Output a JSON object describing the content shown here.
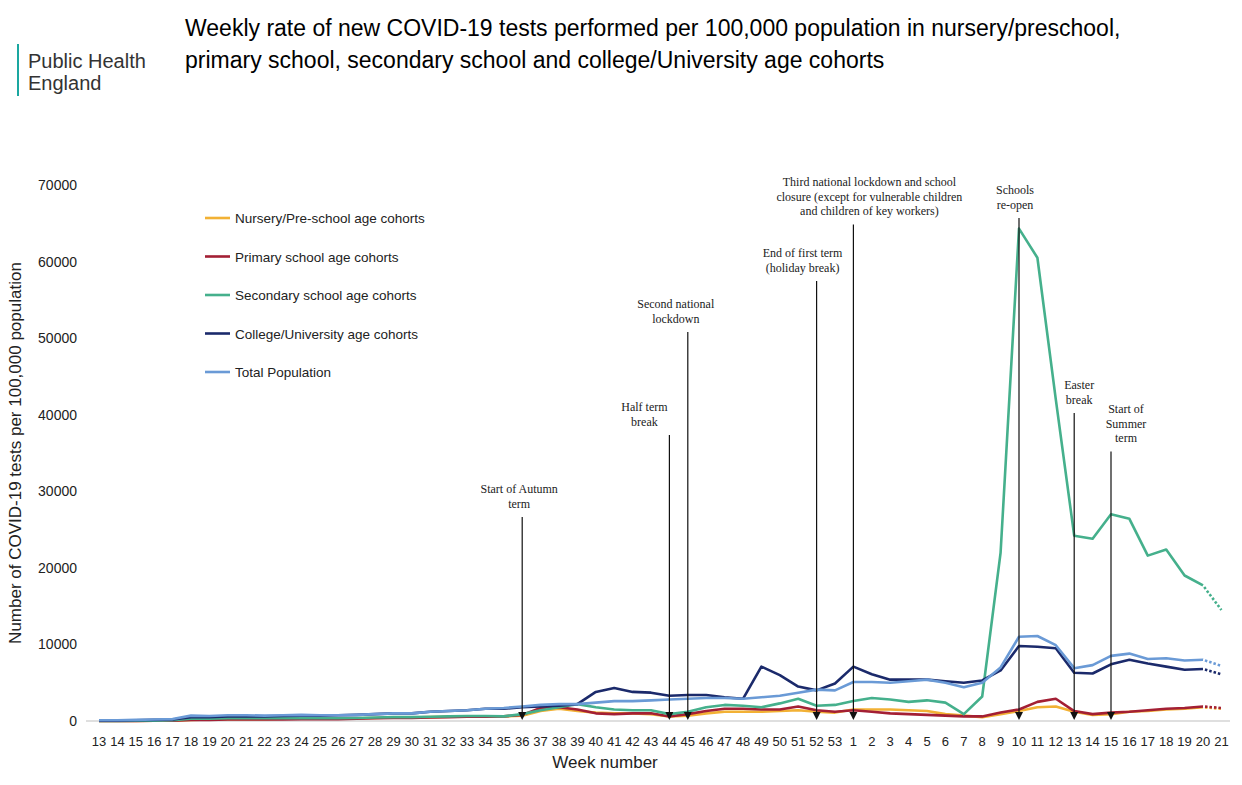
{
  "chart_data": {
    "type": "line",
    "logo": "Public Health England",
    "title": "Weekly rate of new COVID-19 tests performed per 100,000 population in nursery/preschool, primary school, secondary school and college/University age cohorts",
    "x_label": "Week number",
    "y_label": "Number of COVID-19 tests per 100,000 population",
    "categories": [
      "13",
      "14",
      "15",
      "16",
      "17",
      "18",
      "19",
      "20",
      "21",
      "22",
      "23",
      "24",
      "25",
      "26",
      "27",
      "28",
      "29",
      "30",
      "31",
      "32",
      "33",
      "34",
      "35",
      "36",
      "37",
      "38",
      "39",
      "40",
      "41",
      "42",
      "43",
      "44",
      "45",
      "46",
      "47",
      "48",
      "49",
      "50",
      "51",
      "52",
      "53",
      "1",
      "2",
      "3",
      "4",
      "5",
      "6",
      "7",
      "8",
      "9",
      "10",
      "11",
      "12",
      "13",
      "14",
      "15",
      "16",
      "17",
      "18",
      "19",
      "20",
      "21"
    ],
    "ylim": [
      0,
      70000
    ],
    "yticks": [
      0,
      10000,
      20000,
      30000,
      40000,
      50000,
      60000,
      70000
    ],
    "grid": false,
    "legend": "top-left",
    "series": [
      {
        "name": "Nursery/Pre-school age cohorts",
        "color": "#f2b134",
        "values": [
          0,
          0,
          0,
          50,
          50,
          150,
          200,
          250,
          250,
          250,
          300,
          300,
          300,
          300,
          350,
          400,
          450,
          450,
          500,
          550,
          600,
          600,
          600,
          700,
          1300,
          1600,
          1300,
          1100,
          1000,
          1000,
          900,
          600,
          700,
          1000,
          1200,
          1200,
          1200,
          1300,
          1400,
          1200,
          1100,
          1500,
          1500,
          1500,
          1400,
          1300,
          900,
          700,
          500,
          900,
          1300,
          1800,
          1900,
          1200,
          800,
          900,
          1200,
          1300,
          1500,
          1600,
          1800,
          1600
        ]
      },
      {
        "name": "Primary school age cohorts",
        "color": "#a31f34",
        "values": [
          0,
          0,
          0,
          50,
          50,
          150,
          150,
          200,
          200,
          200,
          200,
          250,
          250,
          250,
          300,
          350,
          400,
          400,
          450,
          500,
          550,
          550,
          600,
          800,
          1700,
          1800,
          1500,
          1000,
          900,
          1000,
          1000,
          600,
          900,
          1300,
          1600,
          1600,
          1500,
          1500,
          1900,
          1400,
          1200,
          1400,
          1200,
          1000,
          900,
          800,
          700,
          600,
          600,
          1100,
          1500,
          2500,
          2900,
          1300,
          900,
          1100,
          1200,
          1400,
          1600,
          1700,
          1900,
          1700
        ]
      },
      {
        "name": "Secondary school age cohorts",
        "color": "#45b08c",
        "values": [
          0,
          0,
          50,
          50,
          100,
          300,
          300,
          350,
          350,
          350,
          350,
          350,
          350,
          350,
          400,
          450,
          500,
          500,
          550,
          600,
          650,
          650,
          600,
          900,
          1400,
          1800,
          2200,
          1800,
          1500,
          1400,
          1400,
          900,
          1200,
          1800,
          2100,
          2000,
          1800,
          2300,
          2900,
          2000,
          2100,
          2600,
          3000,
          2800,
          2500,
          2700,
          2400,
          900,
          3200,
          22000,
          64300,
          60500,
          42000,
          24200,
          23800,
          27000,
          26400,
          21600,
          22400,
          19000,
          17700,
          14500
        ]
      },
      {
        "name": "College/University age cohorts",
        "color": "#1b2a6b",
        "values": [
          50,
          50,
          100,
          150,
          200,
          500,
          500,
          600,
          600,
          600,
          650,
          700,
          700,
          750,
          800,
          900,
          1000,
          1000,
          1200,
          1300,
          1400,
          1600,
          1600,
          1800,
          1900,
          2000,
          2200,
          3800,
          4300,
          3800,
          3700,
          3300,
          3400,
          3400,
          3100,
          2900,
          7100,
          6000,
          4500,
          4000,
          4900,
          7100,
          6100,
          5400,
          5400,
          5400,
          5200,
          5000,
          5300,
          6600,
          9800,
          9700,
          9500,
          6300,
          6200,
          7400,
          8000,
          7500,
          7100,
          6700,
          6800,
          6100
        ]
      },
      {
        "name": "Total Population",
        "color": "#6a9ad6",
        "values": [
          100,
          100,
          150,
          200,
          250,
          700,
          650,
          750,
          750,
          700,
          750,
          800,
          750,
          750,
          800,
          900,
          1000,
          1000,
          1200,
          1300,
          1400,
          1600,
          1700,
          1900,
          2100,
          2200,
          2200,
          2400,
          2600,
          2600,
          2700,
          2800,
          2900,
          3000,
          3000,
          2900,
          3100,
          3300,
          3700,
          4100,
          4000,
          5100,
          5100,
          5000,
          5200,
          5400,
          5000,
          4400,
          5000,
          7000,
          11000,
          11100,
          9900,
          6900,
          7300,
          8500,
          8800,
          8100,
          8200,
          7900,
          8000,
          7200
        ]
      }
    ],
    "annotations": [
      {
        "category_index": 23,
        "lines": [
          "Start of Autumn",
          "term"
        ]
      },
      {
        "category_index": 31,
        "lines": [
          "Half term",
          "break"
        ]
      },
      {
        "category_index": 32,
        "lines": [
          "Second national",
          "lockdown"
        ]
      },
      {
        "category_index": 39,
        "lines": [
          "End of first term",
          "(holiday break)"
        ]
      },
      {
        "category_index": 41,
        "lines": [
          "Third national lockdown and school",
          "closure (except for vulnerable children",
          "and children of key workers)"
        ]
      },
      {
        "category_index": 50,
        "lines": [
          "Schools",
          "re-open"
        ]
      },
      {
        "category_index": 53,
        "lines": [
          "Easter",
          "break"
        ]
      },
      {
        "category_index": 55,
        "lines": [
          "Start of",
          "Summer",
          "term"
        ]
      }
    ]
  }
}
